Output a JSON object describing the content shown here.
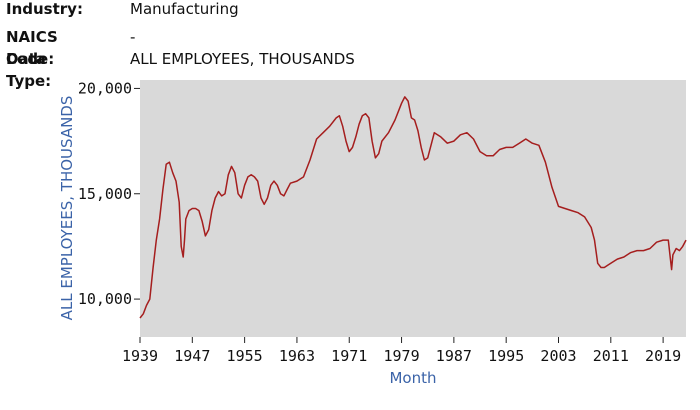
{
  "header": {
    "rows": [
      {
        "label": "Industry:",
        "value": "Manufacturing"
      },
      {
        "label": "NAICS Code:",
        "value": "-"
      },
      {
        "label": "Data Type:",
        "value": "ALL EMPLOYEES, THOUSANDS"
      }
    ]
  },
  "colors": {
    "plot_bg": "#d9d9d9",
    "series": "#a51e1e",
    "axis_title": "#3b63a8"
  },
  "chart_data": {
    "type": "line",
    "title": "",
    "xlabel": "Month",
    "ylabel": "ALL EMPLOYEES, THOUSANDS",
    "xlim": [
      1939,
      2022.5
    ],
    "ylim": [
      8200,
      20400
    ],
    "grid": false,
    "xticks": [
      1939,
      1947,
      1955,
      1963,
      1971,
      1979,
      1987,
      1995,
      2003,
      2011,
      2019
    ],
    "xtick_labels": [
      "1939",
      "1947",
      "1955",
      "1963",
      "1971",
      "1979",
      "1987",
      "1995",
      "2003",
      "2011",
      "2019"
    ],
    "yticks": [
      10000,
      15000,
      20000
    ],
    "ytick_labels": [
      "10,000",
      "15,000",
      "20,000"
    ],
    "series": [
      {
        "x": [
          1939.0,
          1939.5,
          1940.0,
          1940.5,
          1941.0,
          1941.5,
          1942.0,
          1942.5,
          1943.0,
          1943.5,
          1944.0,
          1944.5,
          1945.0,
          1945.3,
          1945.6,
          1945.8,
          1946.0,
          1946.5,
          1947.0,
          1947.5,
          1948.0,
          1948.5,
          1949.0,
          1949.5,
          1950.0,
          1950.5,
          1951.0,
          1951.5,
          1952.0,
          1952.5,
          1953.0,
          1953.5,
          1954.0,
          1954.5,
          1955.0,
          1955.5,
          1956.0,
          1956.5,
          1957.0,
          1957.5,
          1958.0,
          1958.5,
          1959.0,
          1959.5,
          1960.0,
          1960.5,
          1961.0,
          1961.5,
          1962.0,
          1963.0,
          1964.0,
          1965.0,
          1966.0,
          1967.0,
          1968.0,
          1969.0,
          1969.5,
          1970.0,
          1970.5,
          1971.0,
          1971.5,
          1972.0,
          1972.5,
          1973.0,
          1973.5,
          1974.0,
          1974.5,
          1975.0,
          1975.5,
          1976.0,
          1977.0,
          1978.0,
          1979.0,
          1979.5,
          1980.0,
          1980.5,
          1981.0,
          1981.5,
          1982.0,
          1982.5,
          1983.0,
          1983.5,
          1984.0,
          1985.0,
          1986.0,
          1987.0,
          1988.0,
          1989.0,
          1990.0,
          1991.0,
          1992.0,
          1993.0,
          1994.0,
          1995.0,
          1996.0,
          1997.0,
          1998.0,
          1999.0,
          2000.0,
          2001.0,
          2002.0,
          2003.0,
          2004.0,
          2005.0,
          2006.0,
          2007.0,
          2008.0,
          2008.5,
          2009.0,
          2009.5,
          2010.0,
          2010.5,
          2011.0,
          2012.0,
          2013.0,
          2014.0,
          2015.0,
          2016.0,
          2017.0,
          2018.0,
          2019.0,
          2019.8,
          2020.0,
          2020.3,
          2020.5,
          2021.0,
          2021.5,
          2022.0,
          2022.5
        ],
        "values": [
          9100,
          9300,
          9700,
          10000,
          11500,
          12800,
          13800,
          15200,
          16400,
          16500,
          16000,
          15600,
          14600,
          12500,
          12000,
          12800,
          13800,
          14200,
          14300,
          14300,
          14200,
          13700,
          13000,
          13300,
          14200,
          14800,
          15100,
          14900,
          15000,
          15900,
          16300,
          16000,
          15000,
          14800,
          15400,
          15800,
          15900,
          15800,
          15600,
          14800,
          14500,
          14800,
          15400,
          15600,
          15400,
          15000,
          14900,
          15200,
          15500,
          15600,
          15800,
          16600,
          17600,
          17900,
          18200,
          18600,
          18700,
          18200,
          17500,
          17000,
          17200,
          17700,
          18300,
          18700,
          18800,
          18600,
          17500,
          16700,
          16900,
          17500,
          17900,
          18500,
          19300,
          19600,
          19400,
          18600,
          18500,
          18000,
          17200,
          16600,
          16700,
          17300,
          17900,
          17700,
          17400,
          17500,
          17800,
          17900,
          17600,
          17000,
          16800,
          16800,
          17100,
          17200,
          17200,
          17400,
          17600,
          17400,
          17300,
          16500,
          15300,
          14400,
          14300,
          14200,
          14100,
          13900,
          13400,
          12800,
          11700,
          11500,
          11500,
          11600,
          11700,
          11900,
          12000,
          12200,
          12300,
          12300,
          12400,
          12700,
          12800,
          12800,
          12200,
          11400,
          12100,
          12400,
          12300,
          12500,
          12800
        ]
      }
    ]
  }
}
